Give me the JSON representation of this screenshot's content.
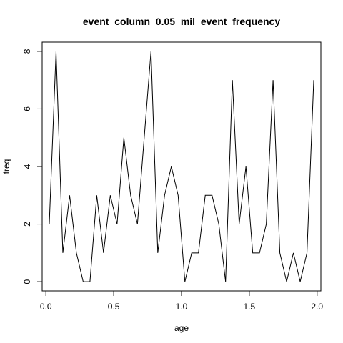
{
  "chart_data": {
    "type": "line",
    "title": "event_column_0.05_mil_event_frequency",
    "xlabel": "age",
    "ylabel": "freq",
    "xlim": [
      0,
      2
    ],
    "ylim": [
      0,
      8
    ],
    "x_ticks": [
      0.0,
      0.5,
      1.0,
      1.5,
      2.0
    ],
    "x_tick_labels": [
      "0.0",
      "0.5",
      "1.0",
      "1.5",
      "2.0"
    ],
    "y_ticks": [
      0,
      2,
      4,
      6,
      8
    ],
    "y_tick_labels": [
      "0",
      "2",
      "4",
      "6",
      "8"
    ],
    "grid": false,
    "series": [
      {
        "x": [
          0.025,
          0.075,
          0.125,
          0.175,
          0.225,
          0.275,
          0.325,
          0.375,
          0.425,
          0.475,
          0.525,
          0.575,
          0.625,
          0.675,
          0.725,
          0.775,
          0.825,
          0.875,
          0.925,
          0.975,
          1.025,
          1.075,
          1.125,
          1.175,
          1.225,
          1.275,
          1.325,
          1.375,
          1.425,
          1.475,
          1.525,
          1.575,
          1.625,
          1.675,
          1.725,
          1.775,
          1.825,
          1.875,
          1.925,
          1.975
        ],
        "values": [
          2,
          8,
          1,
          3,
          1,
          0,
          0,
          3,
          1,
          3,
          2,
          5,
          3,
          2,
          5,
          8,
          1,
          3,
          4,
          3,
          0,
          1,
          1,
          3,
          3,
          2,
          0,
          7,
          2,
          4,
          1,
          1,
          2,
          7,
          1,
          0,
          1,
          0,
          1,
          7
        ]
      }
    ]
  }
}
